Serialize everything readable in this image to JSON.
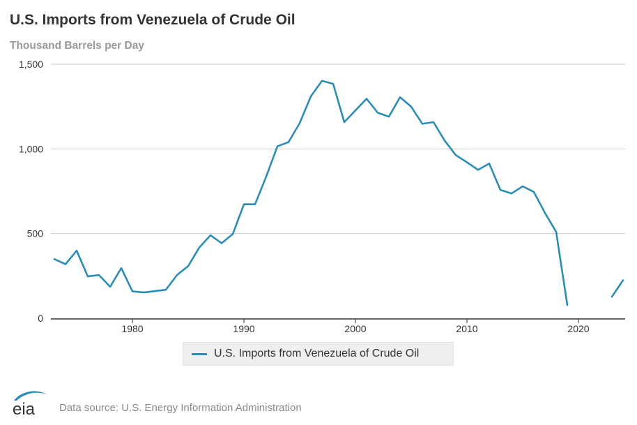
{
  "chart_data": {
    "type": "line",
    "title": "U.S. Imports from Venezuela of Crude Oil",
    "subtitle": "Thousand Barrels per Day",
    "xlabel": "",
    "ylabel": "",
    "xlim": [
      1973,
      2024
    ],
    "ylim": [
      0,
      1500
    ],
    "x_ticks": [
      1980,
      1990,
      2000,
      2010,
      2020
    ],
    "x_tick_labels": [
      "1980",
      "1990",
      "2000",
      "2010",
      "2020"
    ],
    "y_ticks": [
      0,
      500,
      1000,
      1500
    ],
    "y_tick_labels": [
      "0",
      "500",
      "1,000",
      "1,500"
    ],
    "grid": "horizontal",
    "legend_position": "bottom-center",
    "series": [
      {
        "name": "U.S. Imports from Venezuela of Crude Oil",
        "color": "#2b8db3",
        "x": [
          1973,
          1974,
          1975,
          1976,
          1977,
          1978,
          1979,
          1980,
          1981,
          1982,
          1983,
          1984,
          1985,
          1986,
          1987,
          1988,
          1989,
          1990,
          1991,
          1992,
          1993,
          1994,
          1995,
          1996,
          1997,
          1998,
          1999,
          2000,
          2001,
          2002,
          2003,
          2004,
          2005,
          2006,
          2007,
          2008,
          2009,
          2010,
          2011,
          2012,
          2013,
          2014,
          2015,
          2016,
          2017,
          2018,
          2019,
          2020,
          2021,
          2022,
          2023,
          2024
        ],
        "values": [
          349,
          319,
          399,
          247,
          255,
          186,
          296,
          159,
          152,
          160,
          168,
          255,
          308,
          418,
          490,
          443,
          497,
          673,
          673,
          837,
          1015,
          1040,
          1152,
          1310,
          1402,
          1384,
          1158,
          1227,
          1296,
          1213,
          1190,
          1305,
          1249,
          1148,
          1158,
          1049,
          963,
          921,
          876,
          913,
          758,
          737,
          779,
          746,
          621,
          510,
          78,
          null,
          null,
          null,
          127,
          224
        ]
      }
    ]
  },
  "footer": {
    "logo_text": "eia",
    "source": "Data source: U.S. Energy Information Administration"
  }
}
